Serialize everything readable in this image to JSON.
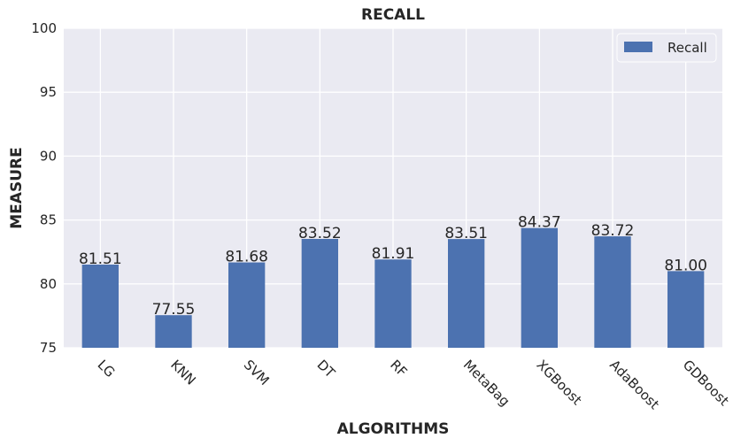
{
  "chart_data": {
    "type": "bar",
    "title": "RECALL",
    "xlabel": "ALGORITHMS",
    "ylabel": "MEASURE",
    "categories": [
      "LG",
      "KNN",
      "SVM",
      "DT",
      "RF",
      "MetaBag",
      "XGBoost",
      "AdaBoost",
      "GDBoost"
    ],
    "series": [
      {
        "name": "Recall",
        "values": [
          81.51,
          77.55,
          81.68,
          83.52,
          81.91,
          83.51,
          84.37,
          83.72,
          81.0
        ],
        "labels": [
          "81.51",
          "77.55",
          "81.68",
          "83.52",
          "81.91",
          "83.51",
          "84.37",
          "83.72",
          "81.00"
        ],
        "color": "#4c72b0"
      }
    ],
    "ylim": [
      75,
      100
    ],
    "yticks": [
      "75",
      "80",
      "85",
      "90",
      "95",
      "100"
    ],
    "grid": true,
    "legend_position": "top-right",
    "background": "#eaeaf2"
  }
}
